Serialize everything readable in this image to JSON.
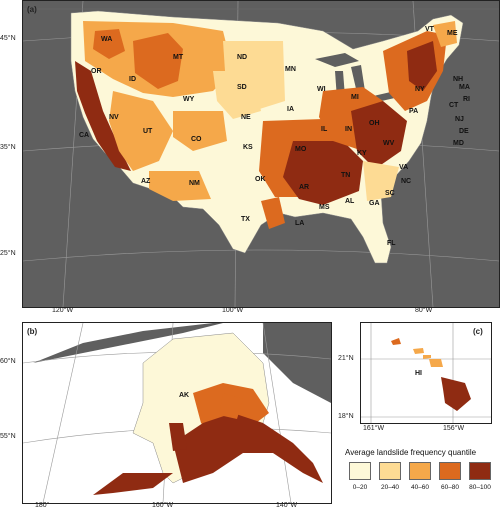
{
  "panels": {
    "a": {
      "label": "(a)"
    },
    "b": {
      "label": "(b)"
    },
    "c": {
      "label": "(c)"
    }
  },
  "ticks": {
    "a_lat": [
      "45°N",
      "35°N",
      "25°N"
    ],
    "a_lon": [
      "120°W",
      "100°W",
      "80°W"
    ],
    "b_lat": [
      "60°N",
      "55°N"
    ],
    "b_lon": [
      "180°",
      "160°W",
      "140°W"
    ],
    "c_lat": [
      "21°N",
      "18°N"
    ],
    "c_lon": [
      "161°W",
      "156°W"
    ]
  },
  "state_labels": [
    "WA",
    "OR",
    "ID",
    "MT",
    "ND",
    "MN",
    "WI",
    "MI",
    "ME",
    "VT",
    "NH",
    "MA",
    "RI",
    "CT",
    "NY",
    "NJ",
    "DE",
    "MD",
    "PA",
    "OH",
    "IN",
    "IL",
    "IA",
    "SD",
    "NE",
    "WY",
    "NV",
    "UT",
    "CO",
    "CA",
    "KS",
    "MO",
    "KY",
    "WV",
    "VA",
    "NC",
    "SC",
    "GA",
    "FL",
    "TN",
    "AL",
    "MS",
    "LA",
    "AR",
    "OK",
    "TX",
    "NM",
    "AZ",
    "AK",
    "HI"
  ],
  "legend": {
    "title": "Average landslide frequency quantile",
    "classes": [
      {
        "label": "0–20",
        "color": "#fdf8d8"
      },
      {
        "label": "20–40",
        "color": "#fddb94"
      },
      {
        "label": "40–60",
        "color": "#f5a84a"
      },
      {
        "label": "60–80",
        "color": "#dc6a1f"
      },
      {
        "label": "80–100",
        "color": "#8f2b12"
      }
    ]
  },
  "colors": {
    "background": "#5f5f5f",
    "noData": "#ffffff",
    "grid": "#9a9a9a"
  }
}
